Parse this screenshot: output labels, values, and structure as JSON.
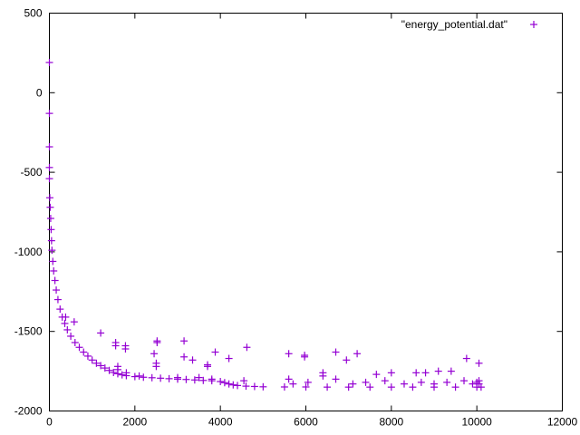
{
  "chart_data": {
    "type": "scatter",
    "title": "",
    "xlabel": "",
    "ylabel": "",
    "xlim": [
      0,
      12000
    ],
    "ylim": [
      -2000,
      500
    ],
    "x_ticks": [
      0,
      2000,
      4000,
      6000,
      8000,
      10000,
      12000
    ],
    "y_ticks": [
      500,
      0,
      -500,
      -1000,
      -1500,
      -2000
    ],
    "grid": false,
    "legend": {
      "position": "top-right"
    },
    "series": [
      {
        "name": "\"energy_potential.dat\"",
        "marker": "plus",
        "color": "#9400d3",
        "points": [
          [
            0,
            190
          ],
          [
            0,
            -130
          ],
          [
            0,
            -340
          ],
          [
            0,
            -470
          ],
          [
            0,
            -540
          ],
          [
            10,
            -660
          ],
          [
            20,
            -720
          ],
          [
            30,
            -790
          ],
          [
            40,
            -860
          ],
          [
            50,
            -930
          ],
          [
            60,
            -990
          ],
          [
            80,
            -1060
          ],
          [
            100,
            -1120
          ],
          [
            130,
            -1180
          ],
          [
            160,
            -1240
          ],
          [
            200,
            -1300
          ],
          [
            250,
            -1360
          ],
          [
            300,
            -1410
          ],
          [
            360,
            -1450
          ],
          [
            420,
            -1490
          ],
          [
            500,
            -1530
          ],
          [
            600,
            -1570
          ],
          [
            700,
            -1600
          ],
          [
            800,
            -1630
          ],
          [
            900,
            -1655
          ],
          [
            1000,
            -1680
          ],
          [
            1100,
            -1700
          ],
          [
            1200,
            -1715
          ],
          [
            1300,
            -1730
          ],
          [
            1400,
            -1745
          ],
          [
            1500,
            -1758
          ],
          [
            1600,
            -1766
          ],
          [
            1700,
            -1773
          ],
          [
            1800,
            -1778
          ],
          [
            2000,
            -1784
          ],
          [
            2200,
            -1788
          ],
          [
            2400,
            -1791
          ],
          [
            2600,
            -1794
          ],
          [
            2800,
            -1797
          ],
          [
            3000,
            -1800
          ],
          [
            3200,
            -1802
          ],
          [
            3400,
            -1805
          ],
          [
            3600,
            -1808
          ],
          [
            3800,
            -1810
          ],
          [
            4000,
            -1815
          ],
          [
            4100,
            -1822
          ],
          [
            4200,
            -1830
          ],
          [
            4300,
            -1836
          ],
          [
            4400,
            -1840
          ],
          [
            4600,
            -1844
          ],
          [
            4800,
            -1846
          ],
          [
            5000,
            -1848
          ],
          [
            5500,
            -1849
          ],
          [
            6000,
            -1849
          ],
          [
            6500,
            -1850
          ],
          [
            7000,
            -1850
          ],
          [
            7500,
            -1850
          ],
          [
            8000,
            -1850
          ],
          [
            8500,
            -1850
          ],
          [
            9000,
            -1850
          ],
          [
            9500,
            -1850
          ],
          [
            10000,
            -1850
          ],
          [
            10100,
            -1850
          ],
          [
            380,
            -1410
          ],
          [
            580,
            -1440
          ],
          [
            1200,
            -1510
          ],
          [
            1550,
            -1570
          ],
          [
            1550,
            -1590
          ],
          [
            1780,
            -1590
          ],
          [
            1780,
            -1610
          ],
          [
            2450,
            -1640
          ],
          [
            2520,
            -1560
          ],
          [
            2520,
            -1570
          ],
          [
            3150,
            -1560
          ],
          [
            3150,
            -1660
          ],
          [
            3350,
            -1680
          ],
          [
            3700,
            -1710
          ],
          [
            3700,
            -1720
          ],
          [
            3880,
            -1630
          ],
          [
            4200,
            -1670
          ],
          [
            4620,
            -1600
          ],
          [
            5600,
            -1640
          ],
          [
            5970,
            -1650
          ],
          [
            5970,
            -1660
          ],
          [
            6700,
            -1630
          ],
          [
            6950,
            -1680
          ],
          [
            7200,
            -1640
          ],
          [
            7650,
            -1770
          ],
          [
            8000,
            -1760
          ],
          [
            8580,
            -1760
          ],
          [
            8800,
            -1760
          ],
          [
            9100,
            -1750
          ],
          [
            9400,
            -1750
          ],
          [
            9760,
            -1670
          ],
          [
            10050,
            -1700
          ],
          [
            10050,
            -1810
          ],
          [
            1600,
            -1720
          ],
          [
            1600,
            -1740
          ],
          [
            1800,
            -1760
          ],
          [
            2100,
            -1780
          ],
          [
            2500,
            -1720
          ],
          [
            2500,
            -1700
          ],
          [
            3000,
            -1790
          ],
          [
            3500,
            -1790
          ],
          [
            3800,
            -1800
          ],
          [
            4550,
            -1810
          ],
          [
            5600,
            -1800
          ],
          [
            5700,
            -1830
          ],
          [
            6050,
            -1820
          ],
          [
            6400,
            -1760
          ],
          [
            6400,
            -1780
          ],
          [
            6700,
            -1800
          ],
          [
            7100,
            -1830
          ],
          [
            7400,
            -1820
          ],
          [
            7850,
            -1810
          ],
          [
            8300,
            -1830
          ],
          [
            8700,
            -1820
          ],
          [
            9000,
            -1830
          ],
          [
            9300,
            -1820
          ],
          [
            9700,
            -1810
          ],
          [
            9900,
            -1830
          ],
          [
            10000,
            -1820
          ],
          [
            10050,
            -1830
          ]
        ]
      }
    ]
  }
}
